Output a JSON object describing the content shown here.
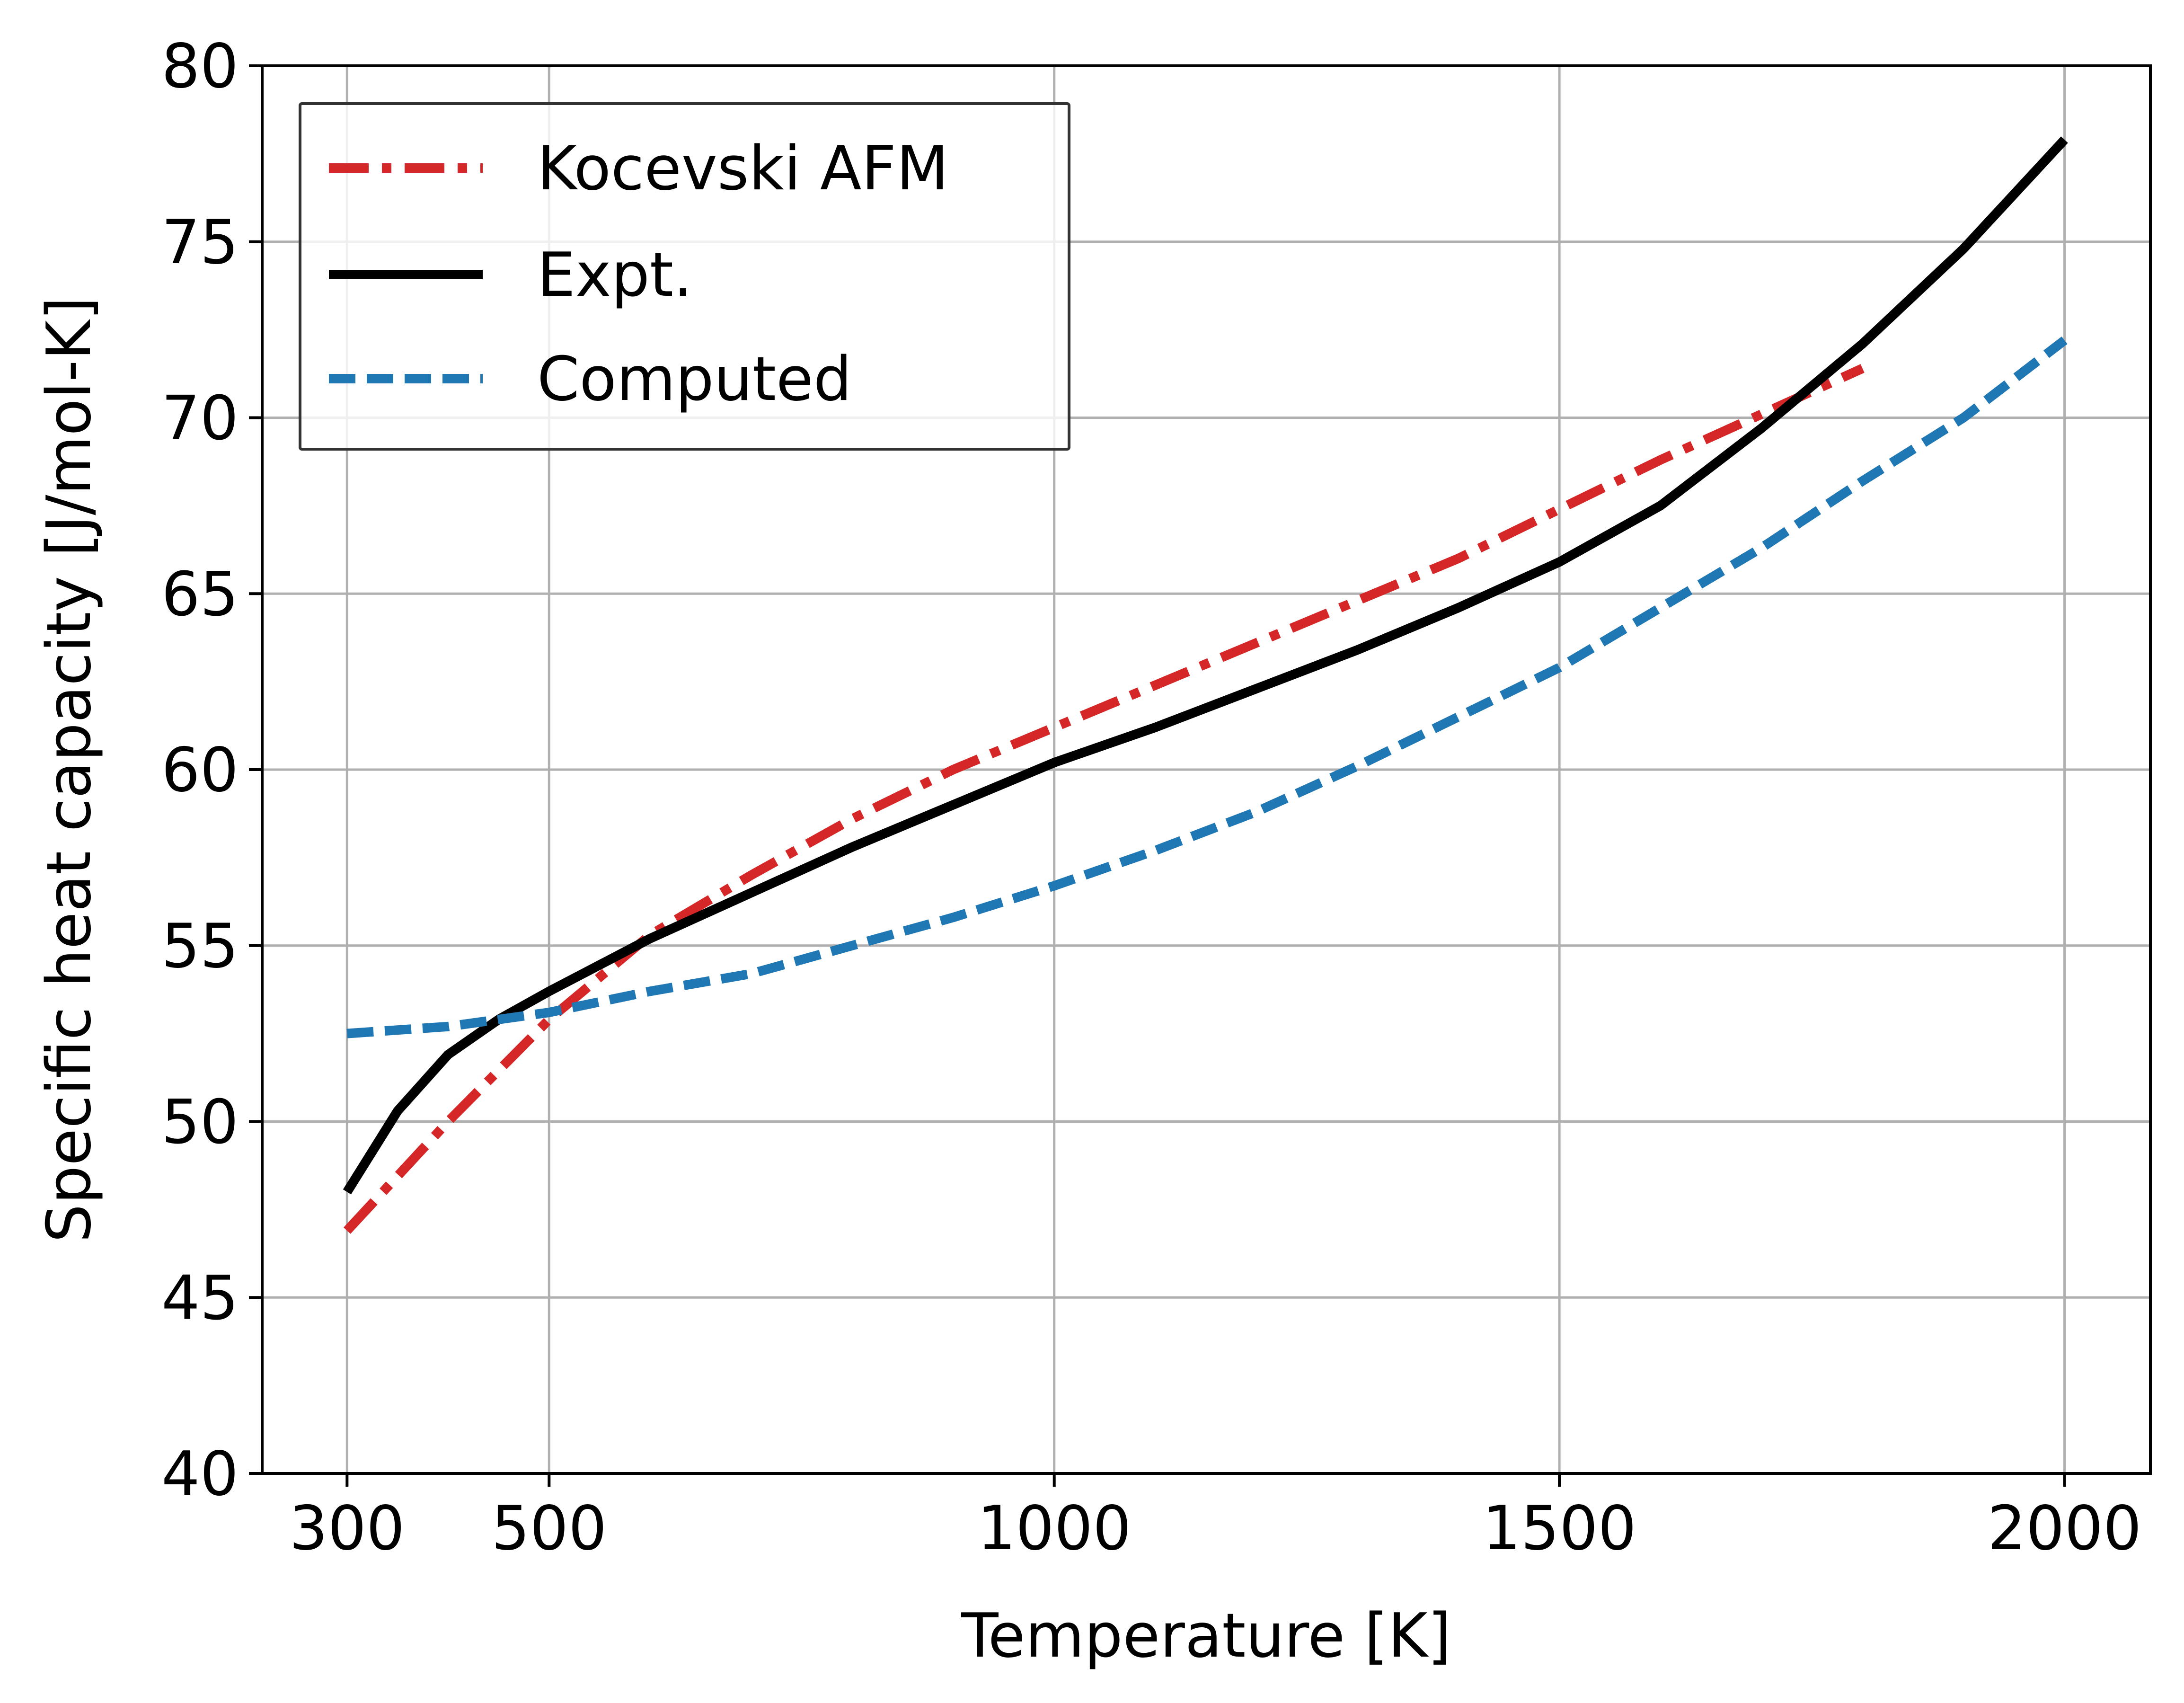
{
  "chart_data": {
    "type": "line",
    "title": "",
    "xlabel": "Temperature [K]",
    "ylabel": "Specific heat capacity [J/mol-K]",
    "xlim": [
      216,
      2085
    ],
    "ylim": [
      40,
      80
    ],
    "xticks": [
      300,
      500,
      1000,
      1500,
      2000
    ],
    "yticks": [
      40,
      45,
      50,
      55,
      60,
      65,
      70,
      75,
      80
    ],
    "grid": true,
    "legend_position": "upper-left",
    "series": [
      {
        "name": "Kocevski AFM",
        "color": "#d62728",
        "style": "dashdot",
        "x": [
          300,
          400,
          500,
          600,
          700,
          800,
          900,
          1000,
          1100,
          1200,
          1300,
          1400,
          1500,
          1600,
          1700,
          1800
        ],
        "y": [
          46.9,
          50.0,
          52.9,
          55.3,
          57.0,
          58.6,
          60.0,
          61.2,
          62.4,
          63.6,
          64.8,
          66.0,
          67.4,
          68.8,
          70.1,
          71.4
        ]
      },
      {
        "name": "Expt.",
        "color": "#000000",
        "style": "solid",
        "x": [
          300,
          350,
          400,
          450,
          500,
          600,
          700,
          800,
          900,
          1000,
          1100,
          1200,
          1300,
          1400,
          1500,
          1600,
          1700,
          1800,
          1900,
          2000
        ],
        "y": [
          48.0,
          50.3,
          51.9,
          52.9,
          53.7,
          55.2,
          56.5,
          57.8,
          59.0,
          60.2,
          61.2,
          62.3,
          63.4,
          64.6,
          65.9,
          67.5,
          69.7,
          72.1,
          74.8,
          77.9
        ]
      },
      {
        "name": "Computed",
        "color": "#1f77b4",
        "style": "dashed",
        "x": [
          300,
          400,
          500,
          600,
          700,
          800,
          900,
          1000,
          1100,
          1200,
          1300,
          1400,
          1500,
          1600,
          1700,
          1800,
          1900,
          2000
        ],
        "y": [
          52.5,
          52.7,
          53.1,
          53.7,
          54.2,
          55.0,
          55.8,
          56.7,
          57.7,
          58.8,
          60.1,
          61.5,
          62.9,
          64.6,
          66.3,
          68.2,
          70.0,
          72.2
        ]
      }
    ]
  }
}
